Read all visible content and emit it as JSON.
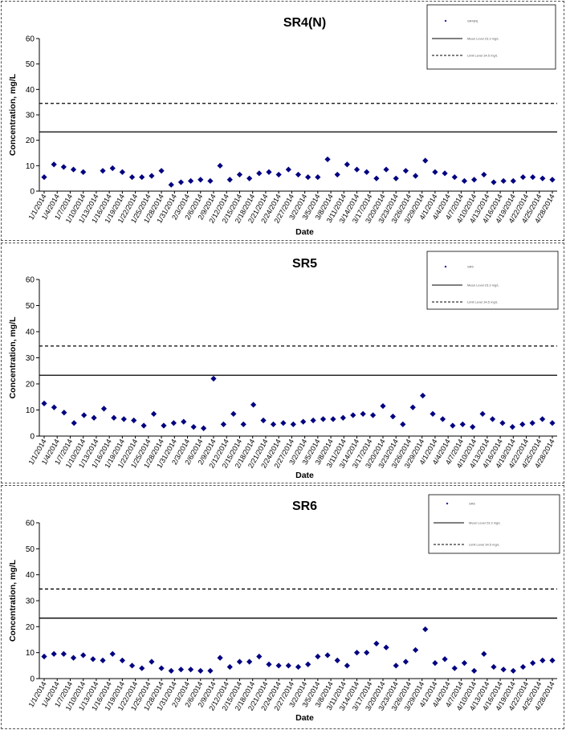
{
  "chart_data": [
    {
      "type": "scatter",
      "title": "SR4(N)",
      "xlabel": "Date",
      "ylabel": "Concentration, mg/L",
      "ylim": [
        0,
        60
      ],
      "yticks": [
        "0",
        "10",
        "20",
        "30",
        "40",
        "50",
        "60"
      ],
      "x_tick_labels": [
        "1/1/2014",
        "1/4/2014",
        "1/7/2014",
        "1/10/2014",
        "1/13/2014",
        "1/16/2014",
        "1/19/2014",
        "1/22/2014",
        "1/25/2014",
        "1/28/2014",
        "1/31/2014",
        "2/3/2014",
        "2/6/2014",
        "2/9/2014",
        "2/12/2014",
        "2/15/2014",
        "2/18/2014",
        "2/21/2014",
        "2/24/2014",
        "2/27/2014",
        "3/2/2014",
        "3/5/2014",
        "3/8/2014",
        "3/11/2014",
        "3/14/2014",
        "3/17/2014",
        "3/20/2014",
        "3/23/2014",
        "3/26/2014",
        "3/29/2014",
        "4/1/2014",
        "4/4/2014",
        "4/7/2014",
        "4/10/2014",
        "4/13/2014",
        "4/16/2014",
        "4/19/2014",
        "4/22/2014",
        "4/25/2014",
        "4/28/2014"
      ],
      "marker_color": "#000080",
      "series": [
        {
          "type": "scatter",
          "values": [
            5.5,
            10.5,
            9.5,
            8.5,
            7.5,
            null,
            8.0,
            9.0,
            7.5,
            5.5,
            5.5,
            6.0,
            8.0,
            2.5,
            3.5,
            4.0,
            4.5,
            4.0,
            10.0,
            4.5,
            6.5,
            5.0,
            7.0,
            7.5,
            6.5,
            8.5,
            6.5,
            5.5,
            5.5,
            12.5,
            6.5,
            10.5,
            8.5,
            7.5,
            5.0,
            8.5,
            5.0,
            8.0,
            6.0,
            12.0,
            7.5,
            7.0,
            5.5,
            4.0,
            4.5,
            6.5,
            3.5,
            4.0,
            4.0,
            5.5,
            5.5,
            5.0,
            4.5
          ]
        },
        {
          "type": "hline",
          "y": 23.3,
          "style": "solid"
        },
        {
          "type": "hline",
          "y": 34.5,
          "style": "dashed"
        }
      ],
      "legend": {
        "position": "top-right",
        "entries": [
          {
            "label": "SR4(N)",
            "marker": "diamond"
          },
          {
            "label": "Mean Level 23.3 mg/L",
            "marker": "solid-line"
          },
          {
            "label": "Limit Level 34.5 mg/L",
            "marker": "dashed-line"
          }
        ]
      }
    },
    {
      "type": "scatter",
      "title": "SR5",
      "xlabel": "Date",
      "ylabel": "Concentration, mg/L",
      "ylim": [
        0,
        60
      ],
      "yticks": [
        "0",
        "10",
        "20",
        "30",
        "40",
        "50",
        "60"
      ],
      "x_tick_labels": [
        "1/1/2014",
        "1/4/2014",
        "1/7/2014",
        "1/10/2014",
        "1/13/2014",
        "1/16/2014",
        "1/19/2014",
        "1/22/2014",
        "1/25/2014",
        "1/28/2014",
        "1/31/2014",
        "2/3/2014",
        "2/6/2014",
        "2/9/2014",
        "2/12/2014",
        "2/15/2014",
        "2/18/2014",
        "2/21/2014",
        "2/24/2014",
        "2/27/2014",
        "3/2/2014",
        "3/5/2014",
        "3/8/2014",
        "3/11/2014",
        "3/14/2014",
        "3/17/2014",
        "3/20/2014",
        "3/23/2014",
        "3/26/2014",
        "3/29/2014",
        "4/1/2014",
        "4/4/2014",
        "4/7/2014",
        "4/10/2014",
        "4/13/2014",
        "4/16/2014",
        "4/19/2014",
        "4/22/2014",
        "4/25/2014",
        "4/28/2014"
      ],
      "marker_color": "#000080",
      "series": [
        {
          "type": "scatter",
          "values": [
            12.5,
            11.0,
            9.0,
            5.0,
            8.0,
            7.0,
            10.5,
            7.0,
            6.5,
            6.0,
            4.0,
            8.5,
            4.0,
            5.0,
            5.5,
            3.5,
            3.0,
            22.0,
            4.5,
            8.5,
            4.5,
            12.0,
            6.0,
            4.5,
            5.0,
            4.5,
            5.5,
            6.0,
            6.5,
            6.5,
            7.0,
            8.0,
            8.5,
            8.0,
            11.5,
            7.5,
            4.5,
            11.0,
            15.5,
            8.5,
            6.5,
            4.0,
            4.5,
            3.5,
            8.5,
            6.5,
            5.0,
            3.5,
            4.5,
            5.0,
            6.5,
            5.0
          ]
        },
        {
          "type": "hline",
          "y": 23.3,
          "style": "solid"
        },
        {
          "type": "hline",
          "y": 34.5,
          "style": "dashed"
        }
      ],
      "legend": {
        "position": "top-right",
        "entries": [
          {
            "label": "SR5",
            "marker": "diamond"
          },
          {
            "label": "Mean Level 23.3 mg/L",
            "marker": "solid-line"
          },
          {
            "label": "Limit Level 34.5 mg/L",
            "marker": "dashed-line"
          }
        ]
      }
    },
    {
      "type": "scatter",
      "title": "SR6",
      "xlabel": "Date",
      "ylabel": "Concentration, mg/L",
      "ylim": [
        0,
        60
      ],
      "yticks": [
        "0",
        "10",
        "20",
        "30",
        "40",
        "50",
        "60"
      ],
      "x_tick_labels": [
        "1/1/2014",
        "1/4/2014",
        "1/7/2014",
        "1/10/2014",
        "1/13/2014",
        "1/16/2014",
        "1/19/2014",
        "1/22/2014",
        "1/25/2014",
        "1/28/2014",
        "1/31/2014",
        "2/3/2014",
        "2/6/2014",
        "2/9/2014",
        "2/12/2014",
        "2/15/2014",
        "2/18/2014",
        "2/21/2014",
        "2/24/2014",
        "2/27/2014",
        "3/2/2014",
        "3/5/2014",
        "3/8/2014",
        "3/11/2014",
        "3/14/2014",
        "3/17/2014",
        "3/20/2014",
        "3/23/2014",
        "3/26/2014",
        "3/29/2014",
        "4/1/2014",
        "4/4/2014",
        "4/7/2014",
        "4/10/2014",
        "4/13/2014",
        "4/16/2014",
        "4/19/2014",
        "4/22/2014",
        "4/25/2014",
        "4/28/2014"
      ],
      "marker_color": "#000080",
      "series": [
        {
          "type": "scatter",
          "values": [
            8.5,
            9.5,
            9.5,
            8.0,
            9.0,
            7.5,
            7.0,
            9.5,
            7.0,
            5.0,
            4.0,
            6.5,
            4.0,
            3.0,
            3.5,
            3.5,
            3.0,
            3.0,
            8.0,
            4.5,
            6.5,
            6.5,
            8.5,
            5.5,
            5.0,
            5.0,
            4.5,
            5.5,
            8.5,
            9.0,
            7.0,
            5.0,
            10.0,
            10.0,
            13.5,
            12.0,
            5.0,
            6.5,
            11.0,
            19.0,
            6.0,
            7.5,
            4.0,
            6.0,
            3.0,
            9.5,
            4.5,
            3.5,
            3.0,
            4.5,
            6.0,
            7.0,
            7.0
          ]
        },
        {
          "type": "hline",
          "y": 23.3,
          "style": "solid"
        },
        {
          "type": "hline",
          "y": 34.5,
          "style": "dashed"
        }
      ],
      "legend": {
        "position": "top-right",
        "entries": [
          {
            "label": "SR6",
            "marker": "diamond"
          },
          {
            "label": "Mean Level 23.3 mg/L",
            "marker": "solid-line"
          },
          {
            "label": "Limit Level 34.5 mg/L",
            "marker": "dashed-line"
          }
        ]
      }
    }
  ]
}
